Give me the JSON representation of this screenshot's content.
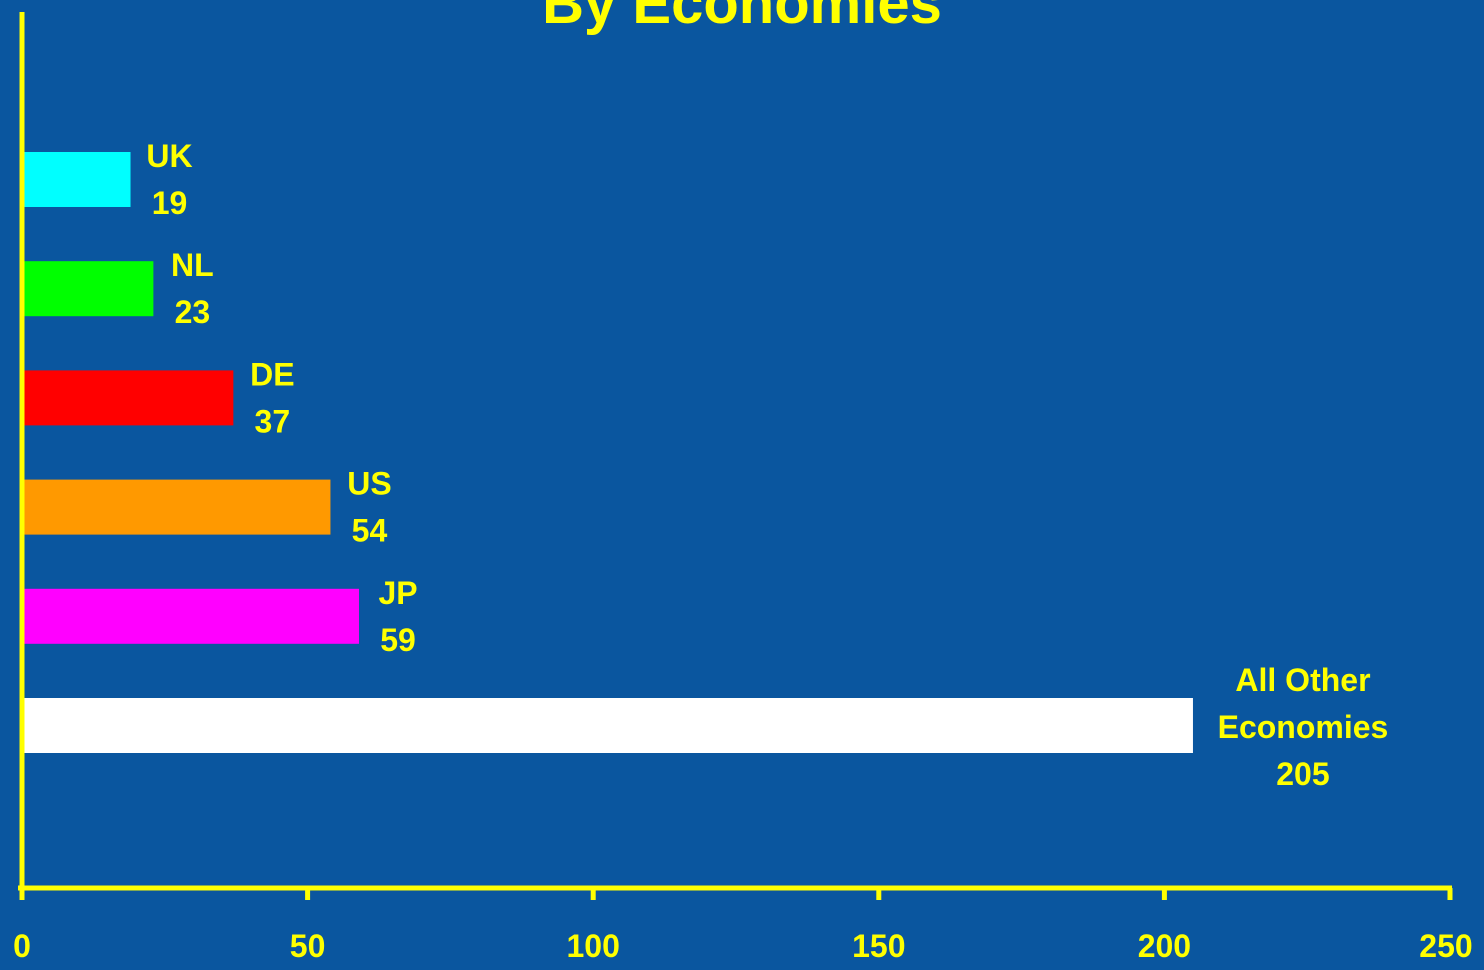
{
  "title": "By Economies",
  "colors": {
    "background": "#0a569f",
    "axis": "#ffff00",
    "label_text": "#ffff00"
  },
  "chart_data": {
    "type": "bar",
    "orientation": "horizontal",
    "title": "By Economies",
    "xlabel": "",
    "ylabel": "",
    "xlim": [
      0,
      250
    ],
    "x_ticks": [
      0,
      50,
      100,
      150,
      200,
      250
    ],
    "x_tick_labels": [
      "0",
      "50",
      "100",
      "150",
      "200",
      "250"
    ],
    "grid": false,
    "legend": "none",
    "bars": [
      {
        "label": [
          "UK"
        ],
        "value": 19,
        "value_label": "19",
        "color": "#00ffff"
      },
      {
        "label": [
          "NL"
        ],
        "value": 23,
        "value_label": "23",
        "color": "#00ff00"
      },
      {
        "label": [
          "DE"
        ],
        "value": 37,
        "value_label": "37",
        "color": "#ff0000"
      },
      {
        "label": [
          "US"
        ],
        "value": 54,
        "value_label": "54",
        "color": "#ff9900"
      },
      {
        "label": [
          "JP"
        ],
        "value": 59,
        "value_label": "59",
        "color": "#ff00ff"
      },
      {
        "label": [
          "All Other",
          "Economies"
        ],
        "value": 205,
        "value_label": "205",
        "color": "#ffffff"
      }
    ]
  }
}
